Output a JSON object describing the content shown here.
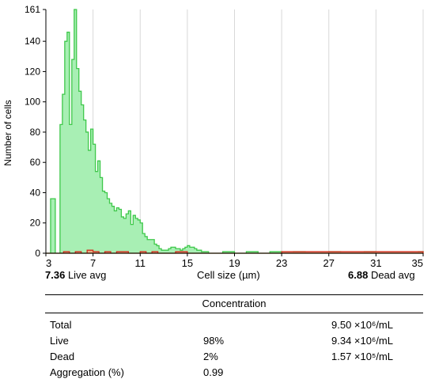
{
  "chart_data": {
    "type": "area",
    "title": "",
    "xlabel": "Cell size (µm)",
    "ylabel": "Number of cells",
    "xlim": [
      3,
      35
    ],
    "ylim": [
      0,
      161
    ],
    "x_ticks": [
      3,
      7,
      11,
      15,
      19,
      23,
      27,
      31,
      35
    ],
    "y_ticks": [
      0,
      20,
      40,
      60,
      80,
      100,
      120,
      140,
      161
    ],
    "grid": "vertical",
    "colors": {
      "live_fill": "#a8efb4",
      "live_line": "#3ec84a",
      "dead_fill": "#f0a880",
      "dead_line": "#d03020",
      "grid": "#d8d8d8"
    },
    "series": [
      {
        "name": "Live",
        "x": [
          3.0,
          3.4,
          3.8,
          4.2,
          4.4,
          4.6,
          4.8,
          5.0,
          5.2,
          5.4,
          5.6,
          5.8,
          6.0,
          6.2,
          6.4,
          6.6,
          6.8,
          7.0,
          7.2,
          7.4,
          7.6,
          7.8,
          8.0,
          8.2,
          8.4,
          8.6,
          8.8,
          9.0,
          9.2,
          9.4,
          9.6,
          9.8,
          10.0,
          10.2,
          10.4,
          10.6,
          10.8,
          11.0,
          11.2,
          11.4,
          11.6,
          11.8,
          12.0,
          12.2,
          12.4,
          12.6,
          12.8,
          13.0,
          13.2,
          13.4,
          13.6,
          13.8,
          14.0,
          14.2,
          14.4,
          14.6,
          14.8,
          15.0,
          15.2,
          15.4,
          15.6,
          15.8,
          16.0,
          16.2,
          16.4,
          16.6,
          16.8,
          17.0,
          17.2,
          17.4,
          17.6,
          17.8,
          18.0,
          19.0,
          20.0,
          21.0,
          22.0,
          23.0,
          24.0,
          25.0,
          26.0,
          27.0,
          28.0,
          29.0,
          30.0,
          31.0,
          32.0,
          33.0,
          34.0,
          34.6,
          35.0
        ],
        "values": [
          0,
          36,
          0,
          85,
          105,
          140,
          146,
          85,
          128,
          161,
          122,
          107,
          98,
          88,
          80,
          68,
          82,
          72,
          54,
          61,
          50,
          41,
          40,
          36,
          33,
          31,
          28,
          30,
          29,
          24,
          23,
          26,
          28,
          19,
          25,
          23,
          22,
          20,
          13,
          11,
          9,
          9,
          9,
          6,
          5,
          3,
          2,
          2,
          2,
          3,
          4,
          4,
          3,
          3,
          2,
          3,
          4,
          5,
          4,
          4,
          3,
          2,
          2,
          1,
          1,
          1,
          0,
          0,
          0,
          0,
          0,
          0,
          1,
          0,
          1,
          0,
          1,
          0,
          1,
          0,
          0,
          1,
          0,
          0,
          1,
          0,
          0,
          0,
          0,
          1,
          0
        ]
      },
      {
        "name": "Dead",
        "x": [
          3.0,
          4.0,
          4.5,
          5.0,
          5.5,
          6.0,
          6.5,
          7.0,
          7.5,
          8.0,
          8.5,
          9.0,
          10.0,
          11.0,
          11.5,
          12.0,
          12.5,
          13.0,
          14.0,
          15.0,
          16.0,
          17.0,
          18.0,
          23.0,
          35.0
        ],
        "values": [
          0,
          0,
          1,
          0,
          1,
          0,
          2,
          1,
          0,
          1,
          0,
          1,
          0,
          1,
          0,
          1,
          0,
          0,
          1,
          0,
          0,
          0,
          0,
          1,
          0
        ]
      }
    ]
  },
  "footer": {
    "live_avg_value": "7.36",
    "live_avg_label": "Live avg",
    "axis_caption": "Cell size (µm)",
    "dead_avg_value": "6.88",
    "dead_avg_label": "Dead avg"
  },
  "table": {
    "header": "Concentration",
    "rows": [
      {
        "label": "Total",
        "percent": "",
        "value": "9.50 ×10⁶/mL"
      },
      {
        "label": "Live",
        "percent": "98%",
        "value": "9.34 ×10⁶/mL"
      },
      {
        "label": "Dead",
        "percent": "2%",
        "value": "1.57 ×10⁵/mL"
      },
      {
        "label": "Aggregation (%)",
        "percent": "0.99",
        "value": ""
      }
    ]
  }
}
